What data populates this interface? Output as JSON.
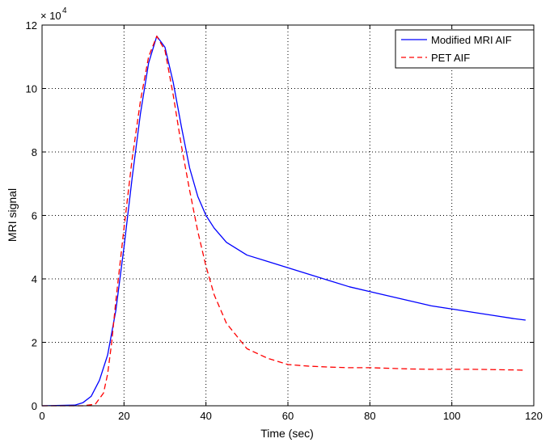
{
  "chart_data": {
    "type": "line",
    "xlabel": "Time (sec)",
    "ylabel": "MRI signal",
    "y_exponent_label": "× 10",
    "y_exponent": "4",
    "xlim": [
      0,
      120
    ],
    "ylim": [
      0,
      12
    ],
    "y_scale_factor": 10000,
    "x_ticks": [
      0,
      20,
      40,
      60,
      80,
      100,
      120
    ],
    "y_ticks": [
      0,
      2,
      4,
      6,
      8,
      10,
      12
    ],
    "grid": true,
    "legend_position": "top-right",
    "series": [
      {
        "name": "Modified MRI AIF",
        "color": "#0000ff",
        "style": "solid",
        "x": [
          0,
          8,
          10,
          12,
          14,
          16,
          18,
          20,
          22,
          24,
          26,
          28,
          30,
          32,
          34,
          36,
          38,
          40,
          42,
          45,
          50,
          55,
          60,
          65,
          70,
          75,
          80,
          85,
          90,
          95,
          100,
          105,
          110,
          115,
          118
        ],
        "y": [
          0,
          0.02,
          0.1,
          0.3,
          0.8,
          1.6,
          3.0,
          5.0,
          7.2,
          9.2,
          10.8,
          11.65,
          11.3,
          10.2,
          8.8,
          7.5,
          6.6,
          6.0,
          5.6,
          5.15,
          4.75,
          4.55,
          4.35,
          4.15,
          3.95,
          3.75,
          3.6,
          3.45,
          3.3,
          3.15,
          3.05,
          2.95,
          2.85,
          2.75,
          2.7
        ]
      },
      {
        "name": "PET AIF",
        "color": "#ff0000",
        "style": "dashed",
        "x": [
          0,
          10,
          13,
          15,
          16,
          17,
          18,
          20,
          22,
          24,
          26,
          28,
          30,
          32,
          34,
          36,
          38,
          40,
          42,
          45,
          50,
          55,
          60,
          65,
          70,
          75,
          80,
          85,
          90,
          95,
          100,
          105,
          110,
          115,
          118
        ],
        "y": [
          0,
          0,
          0.05,
          0.4,
          1.0,
          2.0,
          3.3,
          5.6,
          7.8,
          9.6,
          11.0,
          11.65,
          11.2,
          9.8,
          8.2,
          6.8,
          5.5,
          4.4,
          3.5,
          2.6,
          1.8,
          1.5,
          1.3,
          1.25,
          1.22,
          1.2,
          1.2,
          1.18,
          1.16,
          1.15,
          1.15,
          1.15,
          1.14,
          1.13,
          1.12
        ]
      }
    ]
  }
}
